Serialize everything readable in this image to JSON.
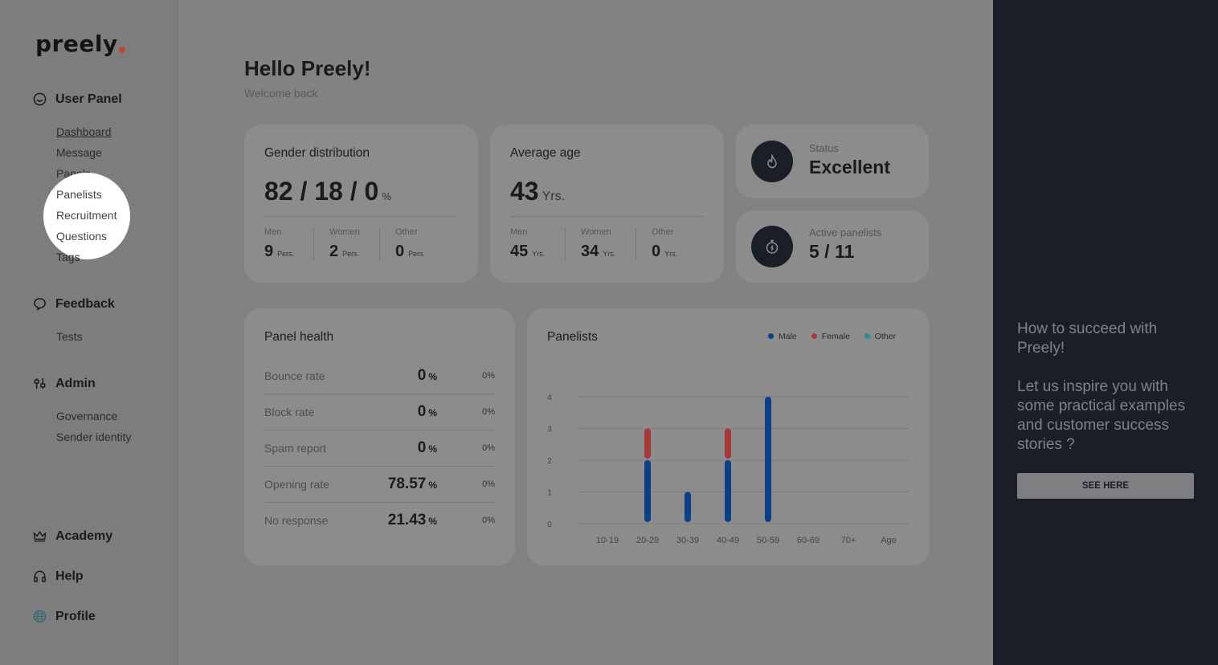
{
  "brand": {
    "name": "preely"
  },
  "sidebar": {
    "user_panel": {
      "label": "User Panel",
      "items": [
        "Dashboard",
        "Message",
        "Panels",
        "Panelists",
        "Recruitment",
        "Questions",
        "Tags"
      ]
    },
    "feedback": {
      "label": "Feedback",
      "items": [
        "Tests"
      ]
    },
    "admin": {
      "label": "Admin",
      "items": [
        "Governance",
        "Sender identity"
      ]
    },
    "academy": "Academy",
    "help": "Help",
    "profile": "Profile"
  },
  "header": {
    "title": "Hello Preely!",
    "subtitle": "Welcome back"
  },
  "gender": {
    "title": "Gender distribution",
    "value": "82 / 18 / 0",
    "unit": "%",
    "items": [
      {
        "label": "Men",
        "value": "9",
        "unit": "Pers."
      },
      {
        "label": "Women",
        "value": "2",
        "unit": "Pers."
      },
      {
        "label": "Other",
        "value": "0",
        "unit": "Pers."
      }
    ]
  },
  "age": {
    "title": "Average age",
    "value": "43",
    "unit": "Yrs.",
    "items": [
      {
        "label": "Men",
        "value": "45",
        "unit": "Yrs."
      },
      {
        "label": "Women",
        "value": "34",
        "unit": "Yrs."
      },
      {
        "label": "Other",
        "value": "0",
        "unit": "Yrs."
      }
    ]
  },
  "status": {
    "label": "Status",
    "value": "Excellent"
  },
  "active": {
    "label": "Active panelists",
    "value": "5 / 11"
  },
  "health": {
    "title": "Panel health",
    "rows": [
      {
        "label": "Bounce rate",
        "value": "0",
        "unit": "%",
        "pct": "0%"
      },
      {
        "label": "Block rate",
        "value": "0",
        "unit": "%",
        "pct": "0%"
      },
      {
        "label": "Spam report",
        "value": "0",
        "unit": "%",
        "pct": "0%"
      },
      {
        "label": "Opening rate",
        "value": "78.57",
        "unit": "%",
        "pct": "0%"
      },
      {
        "label": "No response",
        "value": "21.43",
        "unit": "%",
        "pct": "0%"
      }
    ]
  },
  "chart_data": {
    "type": "bar",
    "title": "Panelists",
    "categories": [
      "10-19",
      "20-29",
      "30-39",
      "40-49",
      "50-59",
      "60-69",
      "70+"
    ],
    "xlabel": "Age",
    "ylim": [
      0,
      4
    ],
    "yticks": [
      "0",
      "1",
      "2",
      "3",
      "4"
    ],
    "stacked": true,
    "series": [
      {
        "name": "Male",
        "color": "#0b3f86",
        "values": [
          0,
          2,
          1,
          2,
          4,
          0,
          0
        ]
      },
      {
        "name": "Female",
        "color": "#a8373a",
        "values": [
          0,
          1,
          0,
          1,
          0,
          0,
          0
        ]
      },
      {
        "name": "Other",
        "color": "#2a8e93",
        "values": [
          0,
          0,
          0,
          0,
          0,
          0,
          0
        ]
      }
    ],
    "legend": "top-right",
    "grid": true
  },
  "promo": {
    "title": "How to succeed with Preely!",
    "body": "Let us inspire you with some practical examples and customer success stories ?",
    "button": "SEE HERE"
  }
}
